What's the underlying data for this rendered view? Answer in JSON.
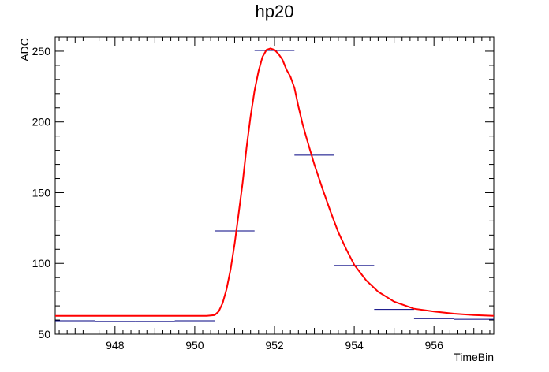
{
  "chart_data": {
    "type": "line",
    "title": "hp20",
    "xlabel": "TimeBin",
    "ylabel": "ADC",
    "xlim": [
      946.5,
      957.5
    ],
    "ylim": [
      50,
      260
    ],
    "x_ticks": [
      948,
      950,
      952,
      954,
      956
    ],
    "x_tick_labels": [
      "948",
      "950",
      "952",
      "954",
      "956"
    ],
    "y_ticks": [
      50,
      100,
      150,
      200,
      250
    ],
    "y_tick_labels": [
      "50",
      "100",
      "150",
      "200",
      "250"
    ],
    "grid": false,
    "legend": "none",
    "series": [
      {
        "style": "histogram",
        "color": "#000080",
        "bins": [
          {
            "x0": 946.5,
            "x1": 947.5,
            "y": 59.5
          },
          {
            "x0": 947.5,
            "x1": 948.5,
            "y": 59
          },
          {
            "x0": 948.5,
            "x1": 949.5,
            "y": 59
          },
          {
            "x0": 949.5,
            "x1": 950.5,
            "y": 59.5
          },
          {
            "x0": 950.5,
            "x1": 951.5,
            "y": 123
          },
          {
            "x0": 951.5,
            "x1": 952.5,
            "y": 250.5
          },
          {
            "x0": 952.5,
            "x1": 953.5,
            "y": 176.5
          },
          {
            "x0": 953.5,
            "x1": 954.5,
            "y": 98.5
          },
          {
            "x0": 954.5,
            "x1": 955.5,
            "y": 67.5
          },
          {
            "x0": 955.5,
            "x1": 956.5,
            "y": 61
          },
          {
            "x0": 956.5,
            "x1": 957.5,
            "y": 60.5
          }
        ]
      },
      {
        "style": "curve",
        "color": "#ff0000",
        "x": [
          946.5,
          948,
          949.5,
          950.3,
          950.5,
          950.6,
          950.7,
          950.8,
          950.9,
          951.0,
          951.1,
          951.2,
          951.3,
          951.4,
          951.5,
          951.6,
          951.7,
          951.8,
          951.9,
          952.0,
          952.1,
          952.2,
          952.3,
          952.4,
          952.5,
          952.6,
          952.7,
          952.8,
          953.0,
          953.2,
          953.4,
          953.6,
          953.8,
          954.0,
          954.3,
          954.6,
          955.0,
          955.5,
          956.0,
          956.5,
          957.0,
          957.5
        ],
        "y": [
          63,
          63,
          63,
          63,
          63.5,
          66,
          72,
          82,
          96,
          114,
          135,
          157,
          182,
          204,
          222,
          236,
          246,
          251,
          252,
          251,
          248,
          244,
          237,
          232,
          224,
          211,
          199,
          189,
          170,
          153,
          137,
          122,
          110,
          99,
          88,
          80,
          73,
          68,
          66,
          64.5,
          63.5,
          63
        ]
      }
    ]
  }
}
